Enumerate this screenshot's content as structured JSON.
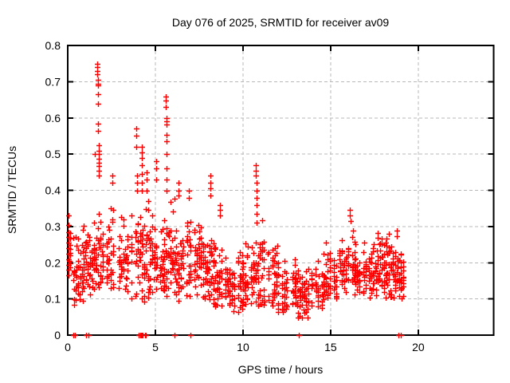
{
  "page": {
    "background": "#ffffff"
  },
  "chart_data": {
    "type": "scatter",
    "title": "Day 076 of 2025, SRMTID for receiver av09",
    "xlabel": "GPS time / hours",
    "ylabel": "SRMTID / TECUs",
    "xlim": [
      0,
      24.3
    ],
    "ylim": [
      0,
      0.8
    ],
    "xticks": [
      [
        0,
        "0"
      ],
      [
        5,
        "5"
      ],
      [
        10,
        "10"
      ],
      [
        15,
        "15"
      ],
      [
        20,
        "20"
      ]
    ],
    "yticks": [
      [
        0,
        "0"
      ],
      [
        0.1,
        "0.1"
      ],
      [
        0.2,
        "0.2"
      ],
      [
        0.3,
        "0.3"
      ],
      [
        0.4,
        "0.4"
      ],
      [
        0.5,
        "0.5"
      ],
      [
        0.6,
        "0.6"
      ],
      [
        0.7,
        "0.7"
      ],
      [
        0.8,
        "0.8"
      ]
    ],
    "grid": true,
    "grid_color": "#b8b8b8",
    "legend": "none",
    "marker": {
      "shape": "plus",
      "color": "#ff0000",
      "size": 7,
      "stroke_width": 1.4
    },
    "series": [
      {
        "name": "SRMTID",
        "color": "#ff0000"
      }
    ],
    "data_extent": {
      "x_min": 0.0,
      "x_max": 19.35,
      "y_min": 0.0,
      "y_max": 0.75
    },
    "scatter_model": {
      "seed": 20250317,
      "epoch_step": 0.12,
      "points_per_epoch": 9,
      "x_jitter": 0.02,
      "epoch_skip_prob": 0.1,
      "bands": [
        [
          0.0,
          0.35,
          0.15,
          0.34
        ],
        [
          0.35,
          0.9,
          0.08,
          0.3
        ],
        [
          0.9,
          1.5,
          0.1,
          0.33
        ],
        [
          1.5,
          2.1,
          0.12,
          0.36
        ],
        [
          2.1,
          2.7,
          0.1,
          0.38
        ],
        [
          2.7,
          3.4,
          0.12,
          0.34
        ],
        [
          3.4,
          4.0,
          0.1,
          0.38
        ],
        [
          4.0,
          4.7,
          0.08,
          0.42
        ],
        [
          4.7,
          5.5,
          0.1,
          0.36
        ],
        [
          5.5,
          6.2,
          0.1,
          0.4
        ],
        [
          6.2,
          7.0,
          0.08,
          0.36
        ],
        [
          7.0,
          7.6,
          0.1,
          0.36
        ],
        [
          7.6,
          8.4,
          0.08,
          0.33
        ],
        [
          8.4,
          9.0,
          0.07,
          0.28
        ],
        [
          9.0,
          10.0,
          0.06,
          0.25
        ],
        [
          10.0,
          10.6,
          0.07,
          0.28
        ],
        [
          10.6,
          11.2,
          0.08,
          0.33
        ],
        [
          11.2,
          12.0,
          0.07,
          0.28
        ],
        [
          12.0,
          13.0,
          0.06,
          0.22
        ],
        [
          13.0,
          13.8,
          0.04,
          0.2
        ],
        [
          13.8,
          14.6,
          0.07,
          0.22
        ],
        [
          14.6,
          15.4,
          0.09,
          0.26
        ],
        [
          15.4,
          16.4,
          0.1,
          0.31
        ],
        [
          16.4,
          17.2,
          0.1,
          0.28
        ],
        [
          17.2,
          18.2,
          0.09,
          0.3
        ],
        [
          18.2,
          18.9,
          0.1,
          0.31
        ],
        [
          18.9,
          19.35,
          0.09,
          0.26
        ]
      ],
      "feature_points": [
        [
          0.05,
          [
            0.33,
            0.305,
            0.285,
            0.27,
            0.255,
            0.24,
            0.225,
            0.21,
            0.195,
            0.18,
            0.165
          ]
        ],
        [
          1.55,
          [
            0.5
          ]
        ],
        [
          1.7,
          [
            0.75,
            0.74,
            0.73,
            0.72
          ]
        ],
        [
          1.72,
          [
            0.705,
            0.695,
            0.69,
            0.665,
            0.64
          ]
        ],
        [
          1.75,
          [
            0.585,
            0.565
          ]
        ],
        [
          1.78,
          [
            0.525,
            0.51,
            0.5,
            0.488,
            0.475,
            0.468,
            0.455,
            0.44
          ]
        ],
        [
          2.55,
          [
            0.44,
            0.42
          ]
        ],
        [
          3.9,
          [
            0.57,
            0.55,
            0.52
          ]
        ],
        [
          3.95,
          [
            0.44,
            0.42,
            0.4
          ]
        ],
        [
          4.25,
          [
            0.52,
            0.505,
            0.49,
            0.47,
            0.445,
            0.42,
            0.4
          ]
        ],
        [
          4.5,
          [
            0.45,
            0.43,
            0.4
          ]
        ],
        [
          5.05,
          [
            0.48,
            0.46,
            0.43
          ]
        ],
        [
          5.6,
          [
            0.66,
            0.648,
            0.63
          ]
        ],
        [
          5.62,
          [
            0.6,
            0.59,
            0.582
          ]
        ],
        [
          5.65,
          [
            0.553,
            0.535,
            0.5,
            0.46,
            0.43,
            0.4
          ]
        ],
        [
          6.3,
          [
            0.42,
            0.4,
            0.385
          ]
        ],
        [
          6.9,
          [
            0.4,
            0.38
          ]
        ],
        [
          8.15,
          [
            0.44,
            0.42,
            0.405,
            0.385
          ]
        ],
        [
          8.7,
          [
            0.36,
            0.345,
            0.33
          ]
        ],
        [
          10.75,
          [
            0.47,
            0.455,
            0.44
          ]
        ],
        [
          10.78,
          [
            0.42,
            0.4,
            0.38,
            0.36,
            0.335,
            0.31
          ]
        ],
        [
          16.1,
          [
            0.345,
            0.33
          ]
        ],
        [
          16.15,
          [
            0.315
          ]
        ]
      ],
      "zero_marks": [
        0.33,
        0.42,
        1.05,
        1.17,
        4.05,
        4.12,
        4.18,
        4.22,
        4.28,
        4.42,
        4.47,
        6.1,
        7.0,
        13.2,
        18.85,
        19.0
      ]
    }
  }
}
